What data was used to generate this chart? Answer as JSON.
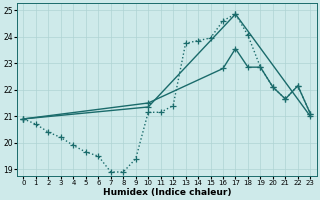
{
  "xlabel": "Humidex (Indice chaleur)",
  "background_color": "#ceeaea",
  "grid_color": "#afd4d4",
  "line_color": "#1a6b6b",
  "xlim": [
    -0.5,
    23.5
  ],
  "ylim": [
    18.75,
    25.25
  ],
  "xticks": [
    0,
    1,
    2,
    3,
    4,
    5,
    6,
    7,
    8,
    9,
    10,
    11,
    12,
    13,
    14,
    15,
    16,
    17,
    18,
    19,
    20,
    21,
    22,
    23
  ],
  "yticks": [
    19,
    20,
    21,
    22,
    23,
    24,
    25
  ],
  "line1_x": [
    0,
    1,
    2,
    3,
    4,
    5,
    6,
    7,
    8,
    9,
    10,
    11,
    12,
    13,
    14,
    15,
    16,
    17,
    18,
    19,
    20,
    21,
    22,
    23
  ],
  "line1_y": [
    20.9,
    20.7,
    20.4,
    20.2,
    19.9,
    19.65,
    19.5,
    18.9,
    18.9,
    19.4,
    21.15,
    21.15,
    21.4,
    23.75,
    23.85,
    23.95,
    24.6,
    24.85,
    24.05,
    22.85,
    22.1,
    21.65,
    22.15,
    21.1
  ],
  "line2_x": [
    0,
    10,
    16,
    17,
    18,
    19,
    20,
    21,
    22,
    23
  ],
  "line2_y": [
    20.9,
    21.5,
    22.8,
    23.55,
    22.85,
    22.85,
    22.1,
    21.65,
    22.15,
    21.1
  ],
  "line3_x": [
    0,
    10,
    17,
    23
  ],
  "line3_y": [
    20.9,
    21.35,
    24.85,
    21.0
  ],
  "marker_size": 4.0,
  "linewidth": 1.0
}
